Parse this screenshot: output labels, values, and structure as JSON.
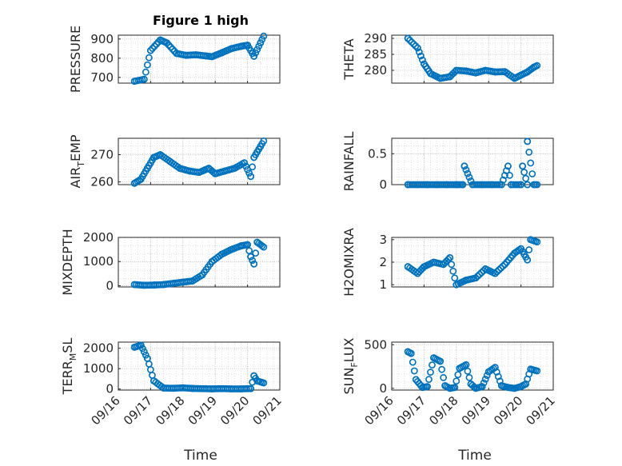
{
  "figure_title": "Figure 1 high",
  "x_axis_label": "Time",
  "x_ticks": [
    "09/16",
    "09/17",
    "09/18",
    "09/19",
    "09/20",
    "09/21"
  ],
  "marker_color": "#0072BD",
  "chart_data": [
    {
      "type": "scatter",
      "title": "Figure 1 high",
      "ylabel": "PRESSURE",
      "xlim": [
        0,
        5
      ],
      "ylim": [
        670,
        920
      ],
      "yticks": [
        "700",
        "800",
        "900"
      ],
      "ytick_values": [
        700,
        800,
        900
      ],
      "x": [
        0.5,
        0.8,
        1.0,
        1.3,
        1.5,
        1.8,
        2.1,
        2.4,
        2.7,
        2.9,
        3.2,
        3.5,
        3.8,
        4.0,
        4.2,
        4.4,
        4.5
      ],
      "y": [
        680,
        690,
        840,
        895,
        880,
        825,
        815,
        818,
        812,
        808,
        828,
        850,
        862,
        868,
        810,
        880,
        915
      ]
    },
    {
      "type": "scatter",
      "title": "",
      "ylabel": "THETA",
      "xlim": [
        0,
        5
      ],
      "ylim": [
        276,
        291
      ],
      "yticks": [
        "280",
        "285",
        "290"
      ],
      "ytick_values": [
        280,
        285,
        290
      ],
      "x": [
        0.5,
        0.8,
        1.0,
        1.2,
        1.5,
        1.8,
        2.0,
        2.3,
        2.6,
        2.9,
        3.2,
        3.5,
        3.8,
        4.0,
        4.2,
        4.4,
        4.5
      ],
      "y": [
        290,
        287,
        282,
        279,
        277.5,
        278,
        280,
        279.8,
        279.2,
        280,
        279.5,
        279.6,
        277.5,
        278.5,
        279.5,
        281,
        281.5
      ]
    },
    {
      "type": "scatter",
      "title": "",
      "ylabel": "AIR_TEMP",
      "ylabel_main": "AIR",
      "ylabel_sub": "T",
      "ylabel_rest": "EMP",
      "xlim": [
        0,
        5
      ],
      "ylim": [
        259,
        276
      ],
      "yticks": [
        "260",
        "270"
      ],
      "ytick_values": [
        260,
        270
      ],
      "x": [
        0.5,
        0.7,
        0.9,
        1.1,
        1.3,
        1.6,
        1.9,
        2.2,
        2.5,
        2.8,
        3.0,
        3.3,
        3.6,
        3.9,
        4.1,
        4.2,
        4.3,
        4.4,
        4.5
      ],
      "y": [
        259.5,
        261,
        265,
        269,
        270,
        267.5,
        265,
        264,
        263.5,
        265,
        263,
        264,
        265,
        267,
        262,
        269,
        271,
        273,
        275
      ]
    },
    {
      "type": "scatter",
      "title": "",
      "ylabel": "RAINFALL",
      "xlim": [
        0,
        5
      ],
      "ylim": [
        0,
        0.75
      ],
      "yticks": [
        "0",
        "0.5"
      ],
      "ytick_values": [
        0,
        0.5
      ],
      "x": [
        0.5,
        0.8,
        1.1,
        1.4,
        1.7,
        2.0,
        2.2,
        2.5,
        2.8,
        3.1,
        3.4,
        3.7,
        4.0,
        4.2,
        4.4,
        4.5,
        2.25,
        3.6,
        4.05,
        4.2
      ],
      "y": [
        0,
        0,
        0,
        0,
        0,
        0,
        0,
        0,
        0,
        0,
        0,
        0,
        0,
        0,
        0,
        0,
        0.3,
        0.3,
        0.3,
        0.7
      ]
    },
    {
      "type": "scatter",
      "title": "",
      "ylabel": "MIXDEPTH",
      "xlim": [
        0,
        5
      ],
      "ylim": [
        -50,
        2000
      ],
      "yticks": [
        "0",
        "1000",
        "2000"
      ],
      "ytick_values": [
        0,
        1000,
        2000
      ],
      "x": [
        0.5,
        0.8,
        1.1,
        1.4,
        1.7,
        2.0,
        2.3,
        2.6,
        2.9,
        3.2,
        3.5,
        3.8,
        4.0,
        4.1,
        4.2,
        4.3,
        4.5
      ],
      "y": [
        50,
        20,
        30,
        50,
        100,
        150,
        200,
        450,
        1000,
        1300,
        1500,
        1650,
        1700,
        1200,
        900,
        1800,
        1600
      ]
    },
    {
      "type": "scatter",
      "title": "",
      "ylabel": "H2OMIXRA",
      "xlim": [
        0,
        5
      ],
      "ylim": [
        0.9,
        3.1
      ],
      "yticks": [
        "1",
        "2",
        "3"
      ],
      "ytick_values": [
        1,
        2,
        3
      ],
      "x": [
        0.5,
        0.8,
        1.0,
        1.3,
        1.6,
        1.8,
        2.0,
        2.3,
        2.6,
        2.9,
        3.2,
        3.5,
        3.8,
        4.0,
        4.2,
        4.3,
        4.5
      ],
      "y": [
        1.8,
        1.5,
        1.8,
        2.0,
        1.9,
        2.2,
        1.0,
        1.2,
        1.3,
        1.7,
        1.5,
        1.9,
        2.4,
        2.6,
        2.1,
        3.0,
        2.9
      ]
    },
    {
      "type": "scatter",
      "title": "",
      "ylabel": "TERR_MSL",
      "ylabel_main": "TERR",
      "ylabel_sub": "M",
      "ylabel_rest": "SL",
      "xlim": [
        0,
        5
      ],
      "ylim": [
        -50,
        2300
      ],
      "yticks": [
        "0",
        "1000",
        "2000"
      ],
      "ytick_values": [
        0,
        1000,
        2000
      ],
      "x": [
        0.5,
        0.7,
        0.9,
        1.1,
        1.4,
        1.7,
        2.0,
        2.3,
        2.6,
        2.9,
        3.2,
        3.5,
        3.8,
        4.1,
        4.2,
        4.3,
        4.5
      ],
      "y": [
        2050,
        2150,
        1500,
        400,
        50,
        40,
        60,
        30,
        20,
        10,
        20,
        10,
        10,
        20,
        650,
        400,
        300
      ]
    },
    {
      "type": "scatter",
      "title": "",
      "ylabel": "SUN_FLUX",
      "ylabel_main": "SUN",
      "ylabel_sub": "F",
      "ylabel_rest": "LUX",
      "xlim": [
        0,
        5
      ],
      "ylim": [
        -20,
        530
      ],
      "yticks": [
        "0",
        "500"
      ],
      "ytick_values": [
        0,
        500
      ],
      "x": [
        0.5,
        0.6,
        0.75,
        0.95,
        1.1,
        1.3,
        1.5,
        1.65,
        1.8,
        1.95,
        2.1,
        2.3,
        2.45,
        2.6,
        2.8,
        3.0,
        3.2,
        3.4,
        3.6,
        3.8,
        4.0,
        4.15,
        4.3,
        4.5
      ],
      "y": [
        420,
        400,
        100,
        10,
        20,
        350,
        310,
        30,
        0,
        10,
        230,
        270,
        50,
        0,
        20,
        190,
        240,
        30,
        10,
        0,
        20,
        50,
        220,
        200
      ]
    }
  ]
}
